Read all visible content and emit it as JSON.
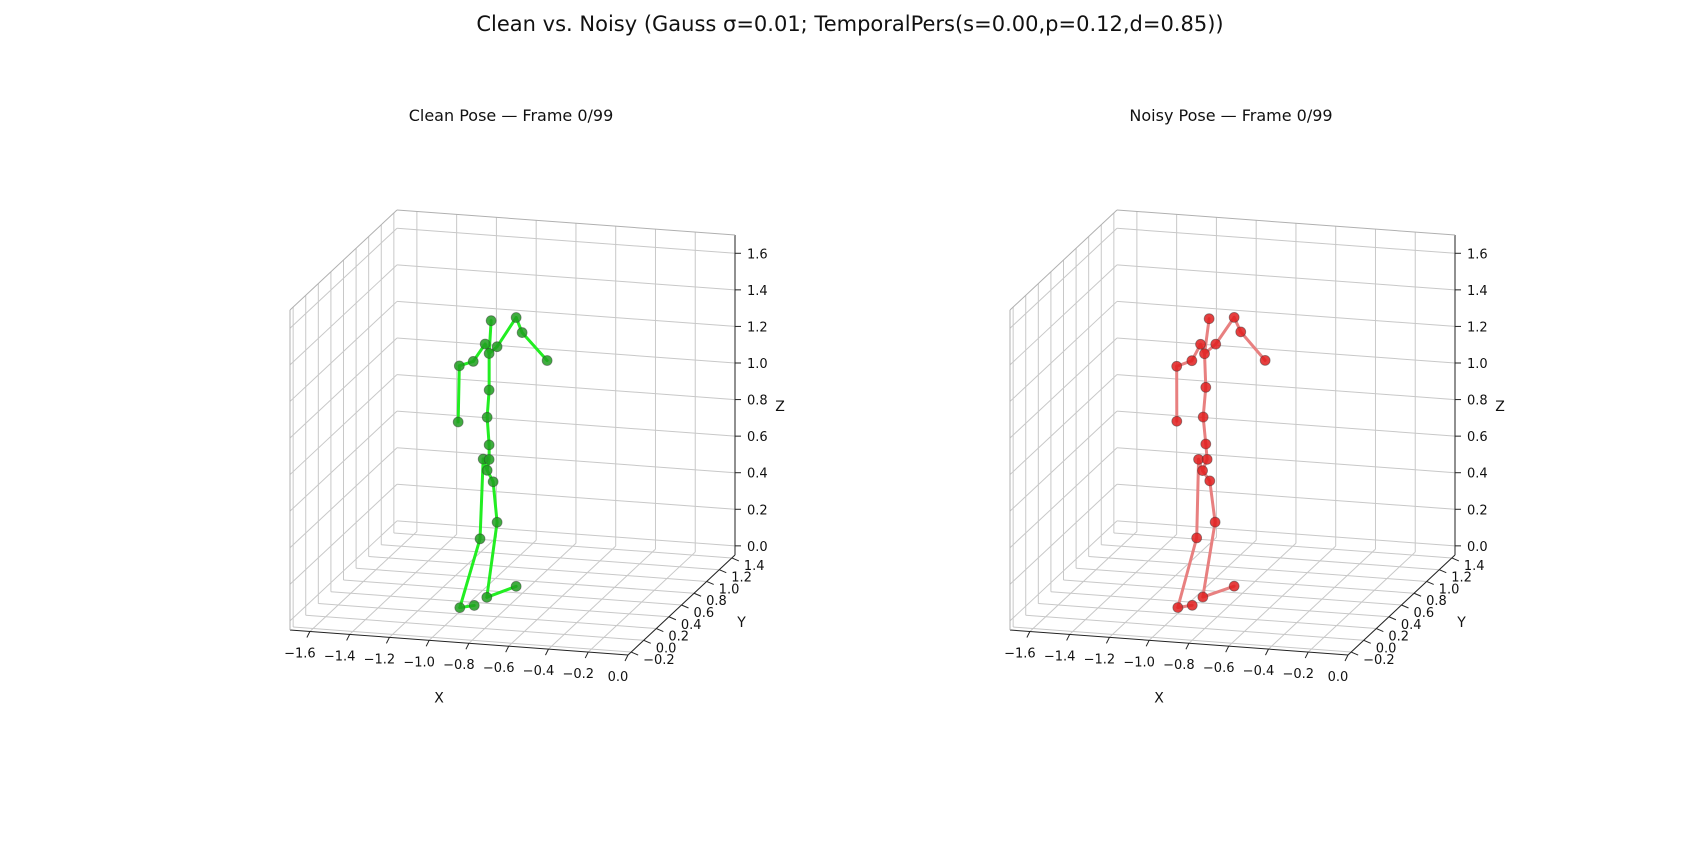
{
  "figure": {
    "suptitle": "Clean vs. Noisy (Gauss σ=0.01; TemporalPers(s=0.00,p=0.12,d=0.85))"
  },
  "chart_data": [
    {
      "type": "scatter",
      "title": "Clean Pose — Frame 0/99",
      "xlabel": "X",
      "ylabel": "Y",
      "zlabel": "Z",
      "x_ticks": [
        "−1.6",
        "−1.4",
        "−1.2",
        "−1.0",
        "−0.8",
        "−0.6",
        "−0.4",
        "−0.2",
        "0.0"
      ],
      "y_ticks": [
        "−0.2",
        "0.0",
        "0.2",
        "0.4",
        "0.6",
        "0.8",
        "1.0",
        "1.2",
        "1.4"
      ],
      "z_ticks": [
        "0.0",
        "0.2",
        "0.4",
        "0.6",
        "0.8",
        "1.0",
        "1.2",
        "1.4",
        "1.6"
      ],
      "xlim": [
        -1.7,
        0.0
      ],
      "ylim": [
        -0.25,
        1.45
      ],
      "zlim": [
        -0.05,
        1.7
      ],
      "grid": true,
      "point_color": "#1f9e1f",
      "bone_color": "#22ee22",
      "joints": [
        {
          "name": "pelvis",
          "x": -0.93,
          "y": 0.45,
          "z": 0.66
        },
        {
          "name": "spine1",
          "x": -0.92,
          "y": 0.45,
          "z": 0.8
        },
        {
          "name": "spine2",
          "x": -0.93,
          "y": 0.45,
          "z": 0.95
        },
        {
          "name": "spine3",
          "x": -0.92,
          "y": 0.45,
          "z": 1.1
        },
        {
          "name": "neck",
          "x": -0.92,
          "y": 0.45,
          "z": 1.3
        },
        {
          "name": "head",
          "x": -0.91,
          "y": 0.45,
          "z": 1.48
        },
        {
          "name": "l_collar",
          "x": -0.94,
          "y": 0.45,
          "z": 1.35
        },
        {
          "name": "l_shoulder",
          "x": -1.0,
          "y": 0.45,
          "z": 1.25
        },
        {
          "name": "l_elbow",
          "x": -1.07,
          "y": 0.45,
          "z": 1.22
        },
        {
          "name": "l_wrist",
          "x": -1.06,
          "y": 0.4,
          "z": 0.93
        },
        {
          "name": "r_collar",
          "x": -0.88,
          "y": 0.45,
          "z": 1.34
        },
        {
          "name": "r_shoulder",
          "x": -0.8,
          "y": 0.5,
          "z": 1.49
        },
        {
          "name": "r_elbow",
          "x": -0.77,
          "y": 0.5,
          "z": 1.41
        },
        {
          "name": "r_wrist",
          "x": -0.66,
          "y": 0.55,
          "z": 1.25
        },
        {
          "name": "l_hip",
          "x": -0.95,
          "y": 0.45,
          "z": 0.72
        },
        {
          "name": "l_knee",
          "x": -0.95,
          "y": 0.4,
          "z": 0.3
        },
        {
          "name": "l_ankle",
          "x": -1.02,
          "y": 0.3,
          "z": -0.05
        },
        {
          "name": "l_foot",
          "x": -0.9,
          "y": 0.15,
          "z": 0.02
        },
        {
          "name": "r_hip",
          "x": -0.9,
          "y": 0.45,
          "z": 0.6
        },
        {
          "name": "r_knee",
          "x": -0.88,
          "y": 0.45,
          "z": 0.38
        },
        {
          "name": "r_ankle",
          "x": -0.9,
          "y": 0.35,
          "z": 0.0
        },
        {
          "name": "r_foot",
          "x": -0.8,
          "y": 0.5,
          "z": 0.02
        },
        {
          "name": "chest",
          "x": -0.92,
          "y": 0.45,
          "z": 0.72
        }
      ],
      "bones": [
        [
          0,
          18
        ],
        [
          18,
          19
        ],
        [
          19,
          20
        ],
        [
          20,
          21
        ],
        [
          0,
          14
        ],
        [
          14,
          15
        ],
        [
          15,
          16
        ],
        [
          16,
          17
        ],
        [
          0,
          22
        ],
        [
          22,
          1
        ],
        [
          1,
          2
        ],
        [
          2,
          3
        ],
        [
          3,
          4
        ],
        [
          4,
          5
        ],
        [
          4,
          6
        ],
        [
          6,
          7
        ],
        [
          7,
          8
        ],
        [
          8,
          9
        ],
        [
          4,
          10
        ],
        [
          10,
          11
        ],
        [
          11,
          12
        ],
        [
          12,
          13
        ]
      ]
    },
    {
      "type": "scatter",
      "title": "Noisy Pose — Frame 0/99",
      "xlabel": "X",
      "ylabel": "Y",
      "zlabel": "Z",
      "x_ticks": [
        "−1.6",
        "−1.4",
        "−1.2",
        "−1.0",
        "−0.8",
        "−0.6",
        "−0.4",
        "−0.2",
        "0.0"
      ],
      "y_ticks": [
        "−0.2",
        "0.0",
        "0.2",
        "0.4",
        "0.6",
        "0.8",
        "1.0",
        "1.2",
        "1.4"
      ],
      "z_ticks": [
        "0.0",
        "0.2",
        "0.4",
        "0.6",
        "0.8",
        "1.0",
        "1.2",
        "1.4",
        "1.6"
      ],
      "xlim": [
        -1.7,
        0.0
      ],
      "ylim": [
        -0.25,
        1.45
      ],
      "zlim": [
        -0.05,
        1.7
      ],
      "grid": true,
      "point_color": "#e11d1d",
      "bone_color": "#e88080",
      "joints": [
        {
          "name": "pelvis",
          "x": -0.95,
          "y": 0.44,
          "z": 0.66
        },
        {
          "name": "spine1",
          "x": -0.94,
          "y": 0.46,
          "z": 0.8
        },
        {
          "name": "spine2",
          "x": -0.95,
          "y": 0.45,
          "z": 0.95
        },
        {
          "name": "spine3",
          "x": -0.94,
          "y": 0.46,
          "z": 1.11
        },
        {
          "name": "neck",
          "x": -0.94,
          "y": 0.44,
          "z": 1.3
        },
        {
          "name": "head",
          "x": -0.92,
          "y": 0.45,
          "z": 1.49
        },
        {
          "name": "l_collar",
          "x": -0.96,
          "y": 0.44,
          "z": 1.35
        },
        {
          "name": "l_shoulder",
          "x": -1.01,
          "y": 0.46,
          "z": 1.25
        },
        {
          "name": "l_elbow",
          "x": -1.08,
          "y": 0.44,
          "z": 1.22
        },
        {
          "name": "l_wrist",
          "x": -1.07,
          "y": 0.41,
          "z": 0.93
        },
        {
          "name": "r_collar",
          "x": -0.89,
          "y": 0.46,
          "z": 1.35
        },
        {
          "name": "r_shoulder",
          "x": -0.81,
          "y": 0.5,
          "z": 1.49
        },
        {
          "name": "r_elbow",
          "x": -0.78,
          "y": 0.51,
          "z": 1.41
        },
        {
          "name": "r_wrist",
          "x": -0.67,
          "y": 0.55,
          "z": 1.25
        },
        {
          "name": "l_hip",
          "x": -0.97,
          "y": 0.44,
          "z": 0.72
        },
        {
          "name": "l_knee",
          "x": -0.97,
          "y": 0.41,
          "z": 0.3
        },
        {
          "name": "l_ankle",
          "x": -1.03,
          "y": 0.3,
          "z": -0.05
        },
        {
          "name": "l_foot",
          "x": -0.91,
          "y": 0.15,
          "z": 0.02
        },
        {
          "name": "r_hip",
          "x": -0.92,
          "y": 0.46,
          "z": 0.6
        },
        {
          "name": "r_knee",
          "x": -0.89,
          "y": 0.45,
          "z": 0.38
        },
        {
          "name": "r_ankle",
          "x": -0.92,
          "y": 0.35,
          "z": 0.0
        },
        {
          "name": "r_foot",
          "x": -0.81,
          "y": 0.5,
          "z": 0.02
        },
        {
          "name": "chest",
          "x": -0.93,
          "y": 0.45,
          "z": 0.72
        }
      ],
      "bones": [
        [
          0,
          18
        ],
        [
          18,
          19
        ],
        [
          19,
          20
        ],
        [
          20,
          21
        ],
        [
          0,
          14
        ],
        [
          14,
          15
        ],
        [
          15,
          16
        ],
        [
          16,
          17
        ],
        [
          0,
          22
        ],
        [
          22,
          1
        ],
        [
          1,
          2
        ],
        [
          2,
          3
        ],
        [
          3,
          4
        ],
        [
          4,
          5
        ],
        [
          4,
          6
        ],
        [
          6,
          7
        ],
        [
          7,
          8
        ],
        [
          8,
          9
        ],
        [
          4,
          10
        ],
        [
          10,
          11
        ],
        [
          11,
          12
        ],
        [
          12,
          13
        ]
      ]
    }
  ]
}
